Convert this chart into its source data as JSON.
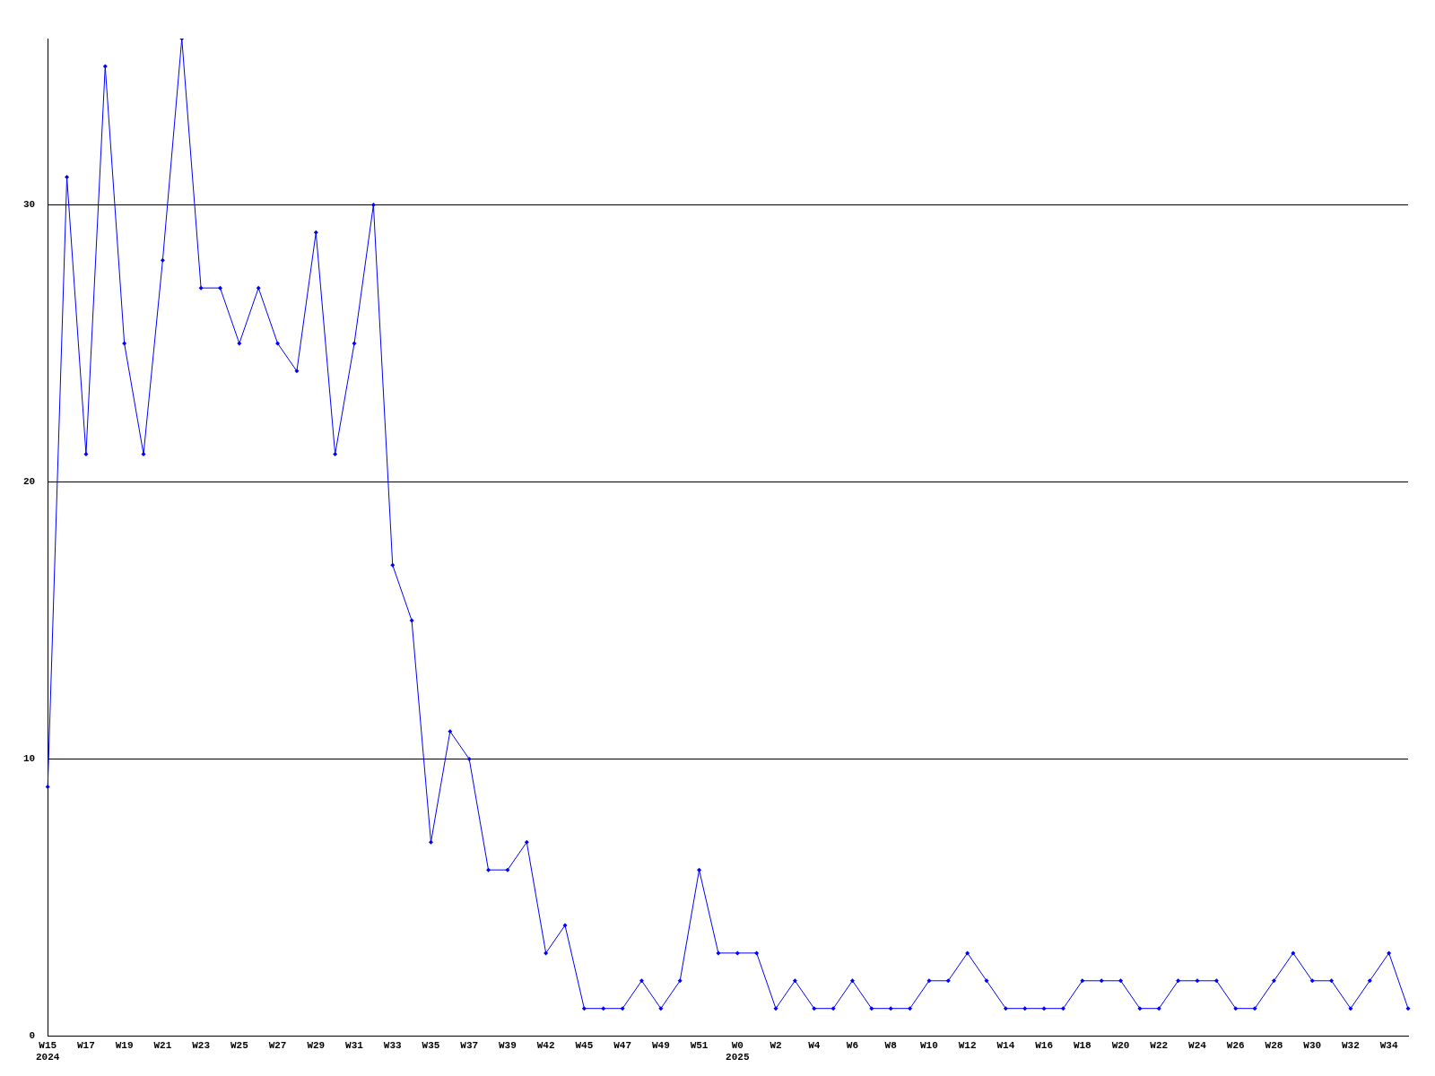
{
  "chart_data": {
    "type": "line",
    "categories": [
      "W15\n2024",
      null,
      "W17",
      null,
      "W19",
      null,
      "W21",
      null,
      "W23",
      null,
      "W25",
      null,
      "W27",
      null,
      "W29",
      null,
      "W31",
      null,
      "W33",
      null,
      "W35",
      null,
      "W37",
      null,
      "W39",
      null,
      "W42",
      null,
      "W45",
      null,
      "W47",
      null,
      "W49",
      null,
      "W51",
      null,
      "W0\n2025",
      null,
      "W2",
      null,
      "W4",
      null,
      "W6",
      null,
      "W8",
      null,
      "W10",
      null,
      "W12",
      null,
      "W14",
      null,
      "W16",
      null,
      "W18",
      null,
      "W20",
      null,
      "W22",
      null,
      "W24",
      null,
      "W26",
      null,
      "W28",
      null,
      "W30",
      null,
      "W32",
      null,
      "W34",
      null
    ],
    "series": [
      {
        "color": "#0000ff",
        "values": [
          9,
          31,
          21,
          35,
          25,
          21,
          28,
          36,
          27,
          27,
          25,
          27,
          25,
          24,
          29,
          21,
          25,
          30,
          17,
          15,
          7,
          11,
          10,
          6,
          6,
          7,
          3,
          4,
          1,
          1,
          1,
          2,
          1,
          2,
          6,
          3,
          3,
          3,
          1,
          2,
          1,
          1,
          2,
          1,
          1,
          1,
          2,
          2,
          3,
          2,
          1,
          1,
          1,
          1,
          2,
          2,
          2,
          1,
          1,
          2,
          2,
          2,
          1,
          1,
          2,
          3,
          2,
          2,
          1,
          2,
          3,
          1
        ]
      }
    ],
    "ylim": [
      0,
      36
    ],
    "yticks": [
      0,
      10,
      20,
      30
    ],
    "grid": "y",
    "legend": false,
    "marker": "diamond",
    "line_style": "solid"
  }
}
